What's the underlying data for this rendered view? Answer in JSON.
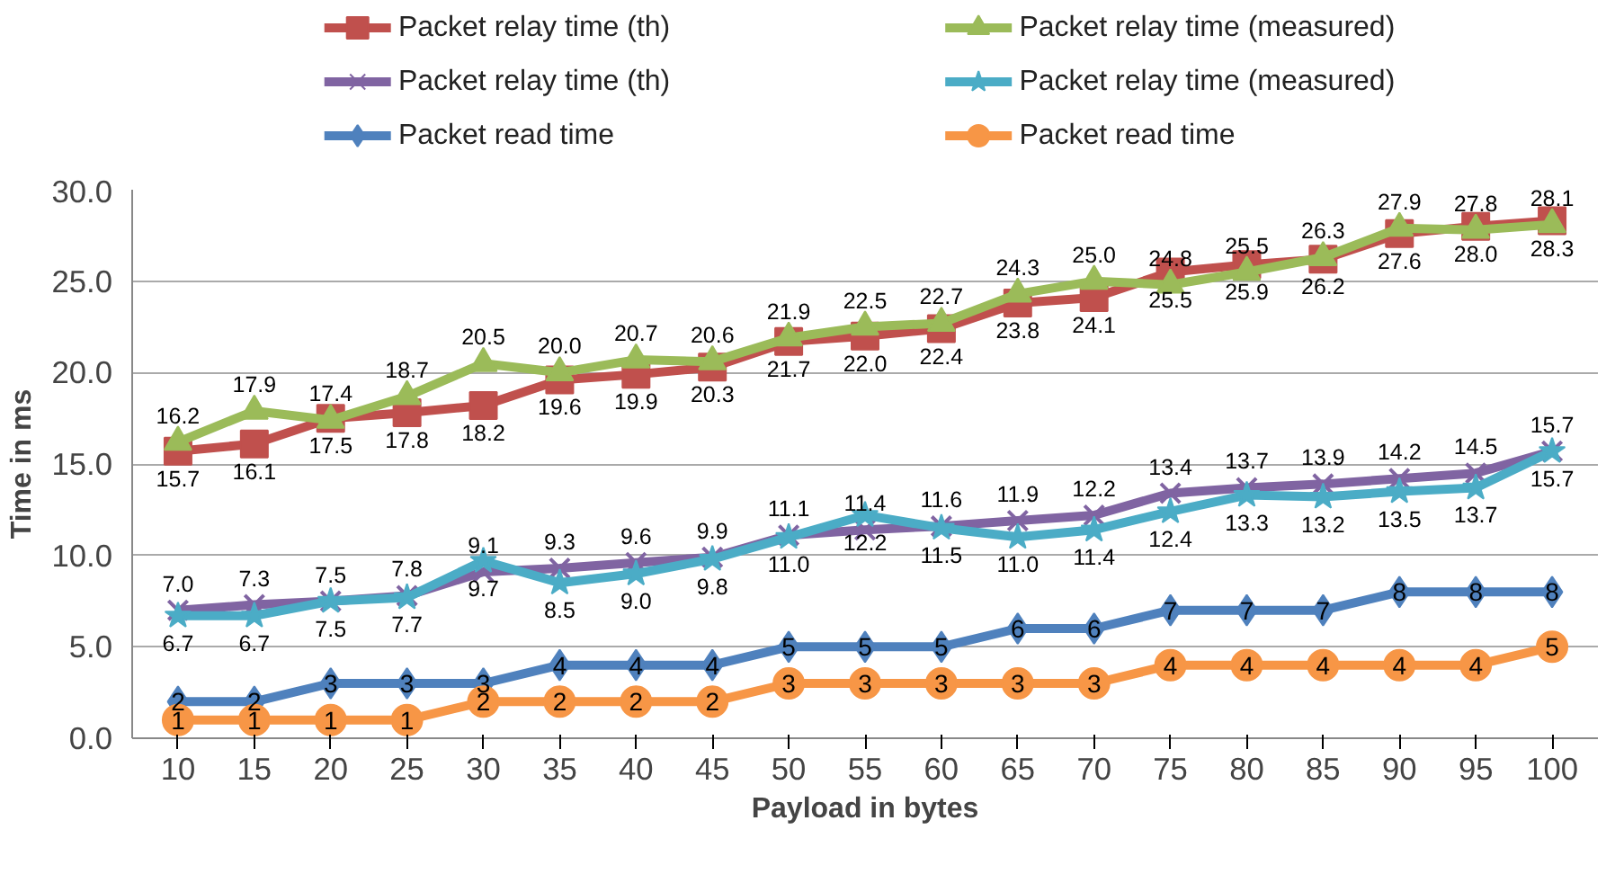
{
  "chart_data": {
    "type": "line",
    "xlabel": "Payload in bytes",
    "ylabel": "Time in ms",
    "categories": [
      "10",
      "15",
      "20",
      "25",
      "30",
      "35",
      "40",
      "45",
      "50",
      "55",
      "60",
      "65",
      "70",
      "75",
      "80",
      "85",
      "90",
      "95",
      "100"
    ],
    "ylim": [
      0,
      30
    ],
    "yticks": [
      {
        "value": 0,
        "label": "0.0"
      },
      {
        "value": 5,
        "label": "5.0"
      },
      {
        "value": 10,
        "label": "10.0"
      },
      {
        "value": 15,
        "label": "15.0"
      },
      {
        "value": 20,
        "label": "20.0"
      },
      {
        "value": 25,
        "label": "25.0"
      },
      {
        "value": 30,
        "label": "30.0"
      }
    ],
    "grid": "y",
    "legend": "top",
    "line_style": "solid",
    "series": [
      {
        "name": "Packet relay time (th)",
        "color": "#c0504d",
        "marker": "square",
        "values": [
          15.7,
          16.1,
          17.5,
          17.8,
          18.2,
          19.6,
          19.9,
          20.3,
          21.7,
          22.0,
          22.4,
          23.8,
          24.1,
          25.5,
          25.9,
          26.2,
          27.6,
          28.0,
          28.3
        ],
        "value_labels": [
          "15.7",
          "16.1",
          "17.5",
          "17.8",
          "18.2",
          "19.6",
          "19.9",
          "20.3",
          "21.7",
          "22.0",
          "22.4",
          "23.8",
          "24.1",
          "25.5",
          "25.9",
          "26.2",
          "27.6",
          "28.0",
          "28.3"
        ]
      },
      {
        "name": "Packet relay time (measured)",
        "color": "#9bbb59",
        "marker": "triangle",
        "values": [
          16.2,
          17.9,
          17.4,
          18.7,
          20.5,
          20.0,
          20.7,
          20.6,
          21.9,
          22.5,
          22.7,
          24.3,
          25.0,
          24.8,
          25.5,
          26.3,
          27.9,
          27.8,
          28.1
        ],
        "value_labels": [
          "16.2",
          "17.9",
          "17.4",
          "18.7",
          "20.5",
          "20.0",
          "20.7",
          "20.6",
          "21.9",
          "22.5",
          "22.7",
          "24.3",
          "25.0",
          "24.8",
          "25.5",
          "26.3",
          "27.9",
          "27.8",
          "28.1"
        ]
      },
      {
        "name": "Packet relay time (th)",
        "color": "#8064a2",
        "marker": "cross",
        "values": [
          7.0,
          7.3,
          7.5,
          7.8,
          9.1,
          9.3,
          9.6,
          9.9,
          11.1,
          11.4,
          11.6,
          11.9,
          12.2,
          13.4,
          13.7,
          13.9,
          14.2,
          14.5,
          15.7
        ],
        "value_labels": [
          "7.0",
          "7.3",
          "7.5",
          "7.8",
          "9.1",
          "9.3",
          "9.6",
          "9.9",
          "11.1",
          "11.4",
          "11.6",
          "11.9",
          "12.2",
          "13.4",
          "13.7",
          "13.9",
          "14.2",
          "14.5",
          "15.7"
        ]
      },
      {
        "name": "Packet relay time (measured)",
        "color": "#4bacc6",
        "marker": "star",
        "values": [
          6.7,
          6.7,
          7.5,
          7.7,
          9.7,
          8.5,
          9.0,
          9.8,
          11.0,
          12.2,
          11.5,
          11.0,
          11.4,
          12.4,
          13.3,
          13.2,
          13.5,
          13.7,
          15.7
        ],
        "value_labels": [
          "6.7",
          "6.7",
          "7.5",
          "7.7",
          "9.7",
          "8.5",
          "9.0",
          "9.8",
          "11.0",
          "12.2",
          "11.5",
          "11.0",
          "11.4",
          "12.4",
          "13.3",
          "13.2",
          "13.5",
          "13.7",
          "15.7"
        ]
      },
      {
        "name": "Packet read time",
        "color": "#4f81bd",
        "marker": "diamond",
        "values": [
          2,
          2,
          3,
          3,
          3,
          4,
          4,
          4,
          5,
          5,
          5,
          6,
          6,
          7,
          7,
          7,
          8,
          8,
          8
        ],
        "value_labels": [
          "2",
          "2",
          "3",
          "3",
          "3",
          "4",
          "4",
          "4",
          "5",
          "5",
          "5",
          "6",
          "6",
          "7",
          "7",
          "7",
          "8",
          "8",
          "8"
        ]
      },
      {
        "name": "Packet read time",
        "color": "#f79646",
        "marker": "circle",
        "values": [
          1,
          1,
          1,
          1,
          2,
          2,
          2,
          2,
          3,
          3,
          3,
          3,
          3,
          4,
          4,
          4,
          4,
          4,
          5
        ],
        "value_labels": [
          "1",
          "1",
          "1",
          "1",
          "2",
          "2",
          "2",
          "2",
          "3",
          "3",
          "3",
          "3",
          "3",
          "4",
          "4",
          "4",
          "4",
          "4",
          "5"
        ]
      }
    ]
  }
}
